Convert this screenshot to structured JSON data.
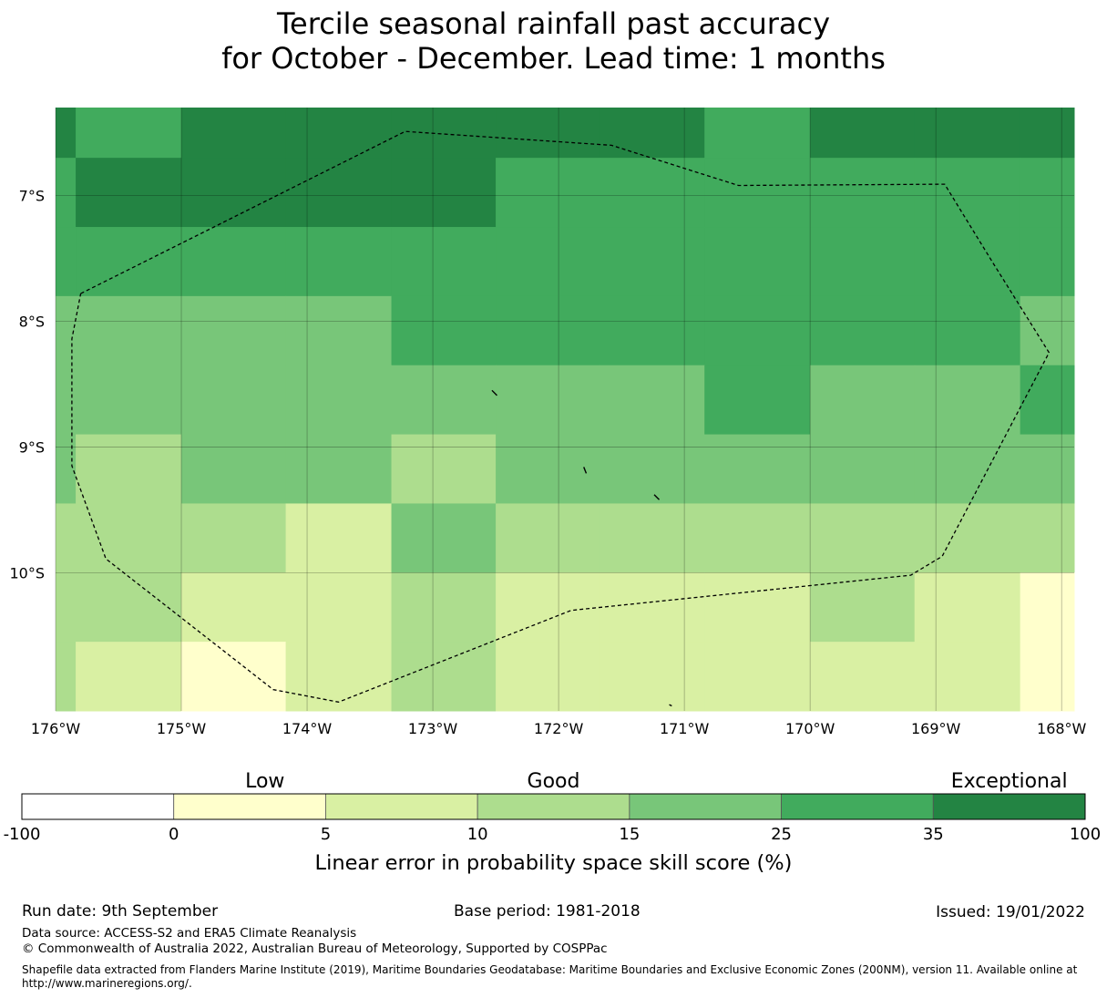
{
  "title_line1": "Tercile seasonal rainfall past accuracy",
  "title_line2": "for October - December. Lead time: 1 months",
  "colors": {
    "lt0": "#ffffff",
    "c0_5": "#ffffcc",
    "c5_10": "#d9f0a3",
    "c10_15": "#addd8e",
    "c15_25": "#78c679",
    "c25_35": "#41ab5d",
    "c35_100": "#238443"
  },
  "chart_data": {
    "type": "heatmap",
    "lon_range": [
      -176,
      -167.9
    ],
    "lat_range": [
      -11.1,
      -6.3
    ],
    "lon_cells": [
      -175.84,
      -175.0,
      -174.17,
      -173.33,
      -172.5,
      -171.67,
      -170.84,
      -170.0,
      -169.17,
      -168.33,
      -167.9
    ],
    "lat_cells": [
      -6.7,
      -7.25,
      -7.8,
      -8.35,
      -8.9,
      -9.45,
      -10.0,
      -10.55,
      -11.1
    ],
    "grid": [
      [
        "c35_100",
        "c25_35",
        "c35_100",
        "c35_100",
        "c35_100",
        "c35_100",
        "c35_100",
        "c25_35",
        "c35_100",
        "c35_100",
        "c35_100"
      ],
      [
        "c25_35",
        "c35_100",
        "c35_100",
        "c35_100",
        "c35_100",
        "c25_35",
        "c25_35",
        "c25_35",
        "c25_35",
        "c25_35",
        "c25_35"
      ],
      [
        "c25_35",
        "c25_35",
        "c25_35",
        "c25_35",
        "c25_35",
        "c25_35",
        "c25_35",
        "c25_35",
        "c25_35",
        "c25_35",
        "c25_35"
      ],
      [
        "c15_25",
        "c15_25",
        "c15_25",
        "c15_25",
        "c25_35",
        "c25_35",
        "c25_35",
        "c25_35",
        "c25_35",
        "c25_35",
        "c15_25"
      ],
      [
        "c15_25",
        "c15_25",
        "c15_25",
        "c15_25",
        "c15_25",
        "c15_25",
        "c15_25",
        "c25_35",
        "c15_25",
        "c15_25",
        "c25_35"
      ],
      [
        "c15_25",
        "c10_15",
        "c15_25",
        "c15_25",
        "c10_15",
        "c15_25",
        "c15_25",
        "c15_25",
        "c15_25",
        "c15_25",
        "c15_25"
      ],
      [
        "c10_15",
        "c10_15",
        "c10_15",
        "c5_10",
        "c15_25",
        "c10_15",
        "c10_15",
        "c10_15",
        "c10_15",
        "c10_15",
        "c10_15"
      ],
      [
        "c10_15",
        "c10_15",
        "c5_10",
        "c5_10",
        "c10_15",
        "c5_10",
        "c5_10",
        "c5_10",
        "c10_15",
        "c5_10",
        "c0_5"
      ],
      [
        "c10_15",
        "c5_10",
        "c0_5",
        "c5_10",
        "c10_15",
        "c5_10",
        "c5_10",
        "c5_10",
        "c5_10",
        "c5_10",
        "c0_5"
      ]
    ],
    "eez_boundary": [
      [
        -175.8,
        -7.78
      ],
      [
        -173.22,
        -6.49
      ],
      [
        -171.58,
        -6.6
      ],
      [
        -170.57,
        -6.92
      ],
      [
        -168.93,
        -6.91
      ],
      [
        -168.55,
        -7.53
      ],
      [
        -168.1,
        -8.25
      ],
      [
        -168.95,
        -9.87
      ],
      [
        -169.2,
        -10.02
      ],
      [
        -171.9,
        -10.3
      ],
      [
        -173.75,
        -11.03
      ],
      [
        -174.27,
        -10.93
      ],
      [
        -175.6,
        -9.89
      ],
      [
        -175.87,
        -9.15
      ],
      [
        -175.87,
        -8.14
      ],
      [
        -175.8,
        -7.78
      ]
    ],
    "islands": [
      [
        [
          -172.53,
          -8.55
        ],
        [
          -172.49,
          -8.59
        ]
      ],
      [
        [
          -171.8,
          -9.16
        ],
        [
          -171.78,
          -9.21
        ]
      ],
      [
        [
          -171.24,
          -9.38
        ],
        [
          -171.2,
          -9.42
        ]
      ],
      [
        [
          -171.12,
          -11.05
        ],
        [
          -171.1,
          -11.06
        ]
      ]
    ],
    "x_ticks": [
      "176°W",
      "175°W",
      "174°W",
      "173°W",
      "172°W",
      "171°W",
      "170°W",
      "169°W",
      "168°W"
    ],
    "x_tick_values": [
      -176,
      -175,
      -174,
      -173,
      -172,
      -171,
      -170,
      -169,
      -168
    ],
    "y_ticks": [
      "7°S",
      "8°S",
      "9°S",
      "10°S"
    ],
    "y_tick_values": [
      -7,
      -8,
      -9,
      -10
    ],
    "gridlines": true
  },
  "legend": {
    "categories": [
      "Low",
      "Good",
      "Exceptional"
    ],
    "category_at": [
      3,
      12.5,
      67.5
    ],
    "bounds": [
      "-100",
      "0",
      "5",
      "10",
      "15",
      "25",
      "35",
      "100"
    ],
    "bins": [
      "lt0",
      "c0_5",
      "c5_10",
      "c10_15",
      "c15_25",
      "c25_35",
      "c35_100"
    ],
    "label": "Linear error in probability space skill score (%)"
  },
  "footer": {
    "run_date": "Run date: 9th September",
    "base_period": "Base period: 1981-2018",
    "issued": "Issued: 19/01/2022",
    "data_source": "Data source: ACCESS-S2 and ERA5 Climate Reanalysis",
    "copyright": "© Commonwealth of Australia 2022, Australian Bureau of Meteorology, Supported by COSPPac",
    "shapefile": "Shapefile data extracted from Flanders Marine Institute (2019), Maritime Boundaries Geodatabase: Maritime Boundaries and Exclusive Economic Zones (200NM), version 11. Available online at http://www.marineregions.org/."
  }
}
